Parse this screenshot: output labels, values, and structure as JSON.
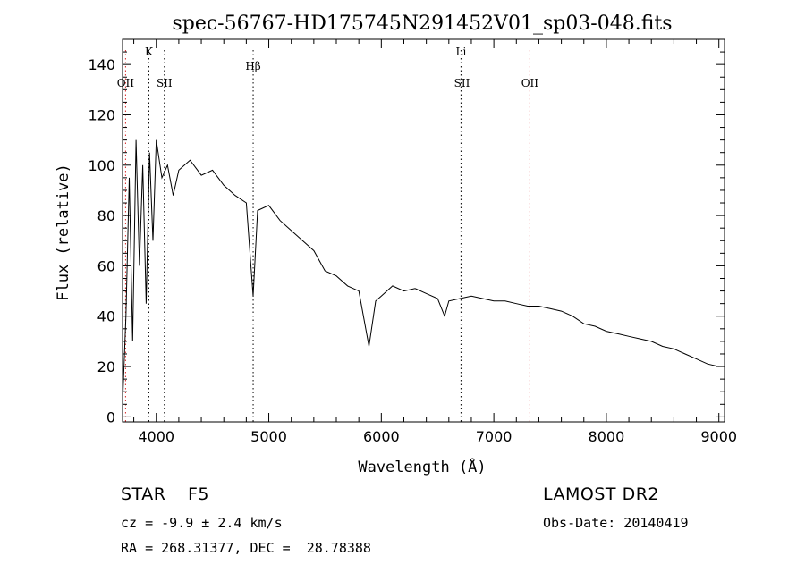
{
  "chart_data": {
    "type": "line",
    "title": "spec-56767-HD175745N291452V01_sp03-048.fits",
    "xlabel": "Wavelength (Å)",
    "ylabel": "Flux (relative)",
    "xlim": [
      3700,
      9050
    ],
    "ylim": [
      -2,
      150
    ],
    "x_ticks": [
      "4000",
      "5000",
      "6000",
      "7000",
      "8000",
      "9000"
    ],
    "y_ticks": [
      "0",
      "20",
      "40",
      "60",
      "80",
      "100",
      "120",
      "140"
    ],
    "grid": false,
    "series": [
      {
        "x": [
          3700,
          3730,
          3760,
          3790,
          3820,
          3850,
          3880,
          3910,
          3940,
          3970,
          4000,
          4050,
          4100,
          4150,
          4200,
          4300,
          4400,
          4500,
          4600,
          4700,
          4800,
          4861,
          4900,
          5000,
          5100,
          5200,
          5300,
          5400,
          5500,
          5600,
          5700,
          5800,
          5890,
          5950,
          6000,
          6100,
          6200,
          6300,
          6400,
          6500,
          6563,
          6600,
          6700,
          6800,
          6900,
          7000,
          7100,
          7200,
          7300,
          7400,
          7500,
          7600,
          7700,
          7800,
          7900,
          8000,
          8100,
          8200,
          8300,
          8400,
          8500,
          8600,
          8700,
          8800,
          8900,
          9000
        ],
        "y": [
          5,
          40,
          95,
          30,
          110,
          60,
          100,
          45,
          105,
          70,
          110,
          95,
          100,
          88,
          98,
          102,
          96,
          98,
          92,
          88,
          85,
          48,
          82,
          84,
          78,
          74,
          70,
          66,
          58,
          56,
          52,
          50,
          28,
          46,
          48,
          52,
          50,
          51,
          49,
          47,
          40,
          46,
          47,
          48,
          47,
          46,
          46,
          45,
          44,
          44,
          43,
          42,
          40,
          37,
          36,
          34,
          33,
          32,
          31,
          30,
          28,
          27,
          25,
          23,
          21,
          20
        ]
      }
    ],
    "annotations": [
      {
        "label": "OII",
        "x": 3727
      },
      {
        "label": "K",
        "x": 3934
      },
      {
        "label": "SII",
        "x": 4072
      },
      {
        "label": "Hβ",
        "x": 4861
      },
      {
        "label": "Li",
        "x": 6708
      },
      {
        "label": "SII",
        "x": 6717
      },
      {
        "label": "OII",
        "x": 7320
      }
    ]
  },
  "info": {
    "object_class": "STAR",
    "subclass": "F5",
    "survey": "LAMOST DR2",
    "redshift": "cz = -9.9 ± 2.4 km/s",
    "obs_date": "Obs-Date: 20140419",
    "coords": "RA = 268.31377, DEC =  28.78388"
  },
  "colors": {
    "line": "#000000",
    "emission_marker": "#d62728",
    "absorption_marker": "#000000"
  }
}
